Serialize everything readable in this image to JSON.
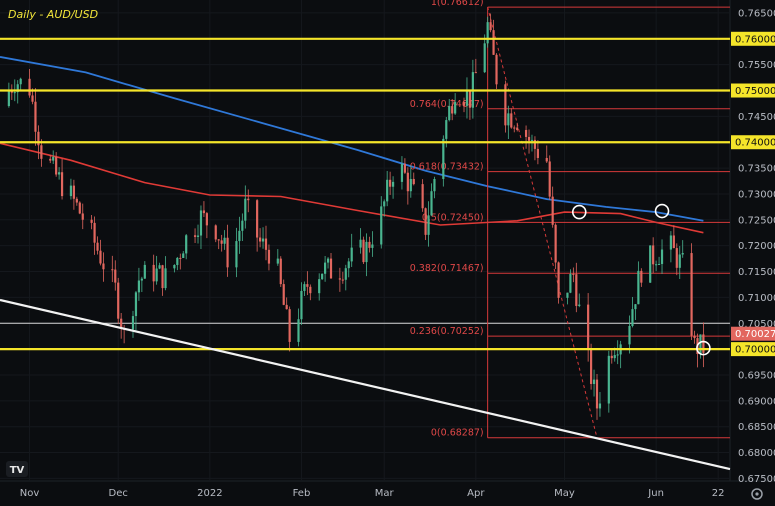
{
  "chart_data": {
    "type": "candlestick",
    "title": "Daily - AUD/USD",
    "y_range": [
      0.6745,
      0.7675
    ],
    "y_tick_labels": [
      "0.76500",
      "0.76000",
      "0.75500",
      "0.75000",
      "0.74500",
      "0.74000",
      "0.73500",
      "0.73000",
      "0.72500",
      "0.72000",
      "0.71500",
      "0.71000",
      "0.70500",
      "0.70000",
      "0.69500",
      "0.69000",
      "0.68500",
      "0.68000",
      "0.67500"
    ],
    "x_tick_labels": [
      {
        "label": "Nov",
        "date": "2021-11-01"
      },
      {
        "label": "Dec",
        "date": "2021-12-01"
      },
      {
        "label": "2022",
        "date": "2022-01-01"
      },
      {
        "label": "Feb",
        "date": "2022-02-01"
      },
      {
        "label": "Mar",
        "date": "2022-03-01"
      },
      {
        "label": "Apr",
        "date": "2022-04-01"
      },
      {
        "label": "May",
        "date": "2022-05-01"
      },
      {
        "label": "Jun",
        "date": "2022-06-01"
      },
      {
        "label": "22",
        "date": "2022-06-22"
      }
    ],
    "x_range": [
      "2021-10-22",
      "2022-06-26"
    ],
    "current_price": {
      "label": "0.70027",
      "value": 0.70027
    },
    "horizontal_levels": [
      {
        "value": 0.76,
        "label": "0.76000",
        "color": "#f5e52a"
      },
      {
        "value": 0.75,
        "label": "0.75000",
        "color": "#f5e52a"
      },
      {
        "value": 0.74,
        "label": "0.74000",
        "color": "#f5e52a"
      },
      {
        "value": 0.7,
        "label": "0.70000",
        "color": "#f5e52a"
      },
      {
        "value": 0.705,
        "label": "",
        "color": "#d8d8d8"
      }
    ],
    "fibonacci": [
      {
        "label": "1(0.76612)",
        "value": 0.76612
      },
      {
        "label": "0.764(0.74647)",
        "value": 0.74647
      },
      {
        "label": "0.618(0.73432)",
        "value": 0.73432
      },
      {
        "label": "0.5(0.72450)",
        "value": 0.7245
      },
      {
        "label": "0.382(0.71467)",
        "value": 0.71467
      },
      {
        "label": "0.236(0.70252)",
        "value": 0.70252
      },
      {
        "label": "0(0.68287)",
        "value": 0.68287
      }
    ],
    "fib_start_date": "2022-04-05",
    "fib_end_date": "2022-06-24",
    "fib_swing": [
      {
        "date": "2022-04-05",
        "value": 0.76612
      },
      {
        "date": "2022-05-12",
        "value": 0.68287
      }
    ],
    "trendline": [
      {
        "date": "2021-10-22",
        "value": 0.7095
      },
      {
        "date": "2022-06-26",
        "value": 0.6768
      }
    ],
    "ma_blue": [
      {
        "date": "2021-10-22",
        "value": 0.7565
      },
      {
        "date": "2021-11-20",
        "value": 0.7535
      },
      {
        "date": "2021-12-20",
        "value": 0.7485
      },
      {
        "date": "2022-01-20",
        "value": 0.7435
      },
      {
        "date": "2022-02-20",
        "value": 0.7385
      },
      {
        "date": "2022-03-15",
        "value": 0.7345
      },
      {
        "date": "2022-04-05",
        "value": 0.7315
      },
      {
        "date": "2022-04-25",
        "value": 0.729
      },
      {
        "date": "2022-05-15",
        "value": 0.7275
      },
      {
        "date": "2022-06-01",
        "value": 0.7265
      },
      {
        "date": "2022-06-17",
        "value": 0.7248
      }
    ],
    "ma_red": [
      {
        "date": "2021-10-22",
        "value": 0.7398
      },
      {
        "date": "2021-11-15",
        "value": 0.7365
      },
      {
        "date": "2021-12-10",
        "value": 0.7322
      },
      {
        "date": "2022-01-01",
        "value": 0.7298
      },
      {
        "date": "2022-01-25",
        "value": 0.7295
      },
      {
        "date": "2022-02-20",
        "value": 0.7268
      },
      {
        "date": "2022-03-20",
        "value": 0.724
      },
      {
        "date": "2022-04-15",
        "value": 0.7248
      },
      {
        "date": "2022-05-01",
        "value": 0.7265
      },
      {
        "date": "2022-05-20",
        "value": 0.7262
      },
      {
        "date": "2022-06-01",
        "value": 0.7245
      },
      {
        "date": "2022-06-17",
        "value": 0.7225
      }
    ],
    "circle_markers": [
      {
        "date": "2022-05-06",
        "value": 0.7265
      },
      {
        "date": "2022-06-03",
        "value": 0.7267
      },
      {
        "date": "2022-06-17",
        "value": 0.7002
      }
    ],
    "closes": [
      {
        "date": "2021-10-22",
        "value": 0.747
      },
      {
        "date": "2021-10-27",
        "value": 0.752
      },
      {
        "date": "2021-11-01",
        "value": 0.7505
      },
      {
        "date": "2021-11-05",
        "value": 0.7385
      },
      {
        "date": "2021-11-10",
        "value": 0.7335
      },
      {
        "date": "2021-11-15",
        "value": 0.7295
      },
      {
        "date": "2021-11-20",
        "value": 0.7245
      },
      {
        "date": "2021-11-25",
        "value": 0.718
      },
      {
        "date": "2021-11-30",
        "value": 0.7115
      },
      {
        "date": "2021-12-03",
        "value": 0.7025
      },
      {
        "date": "2021-12-08",
        "value": 0.7135
      },
      {
        "date": "2021-12-13",
        "value": 0.715
      },
      {
        "date": "2021-12-18",
        "value": 0.7135
      },
      {
        "date": "2021-12-23",
        "value": 0.7205
      },
      {
        "date": "2021-12-29",
        "value": 0.7255
      },
      {
        "date": "2022-01-03",
        "value": 0.7235
      },
      {
        "date": "2022-01-08",
        "value": 0.7165
      },
      {
        "date": "2022-01-13",
        "value": 0.7275
      },
      {
        "date": "2022-01-18",
        "value": 0.7205
      },
      {
        "date": "2022-01-23",
        "value": 0.718
      },
      {
        "date": "2022-01-28",
        "value": 0.702
      },
      {
        "date": "2022-02-03",
        "value": 0.7125
      },
      {
        "date": "2022-02-08",
        "value": 0.7155
      },
      {
        "date": "2022-02-13",
        "value": 0.715
      },
      {
        "date": "2022-02-18",
        "value": 0.7175
      },
      {
        "date": "2022-02-23",
        "value": 0.7195
      },
      {
        "date": "2022-02-28",
        "value": 0.726
      },
      {
        "date": "2022-03-05",
        "value": 0.7365
      },
      {
        "date": "2022-03-10",
        "value": 0.7315
      },
      {
        "date": "2022-03-15",
        "value": 0.7235
      },
      {
        "date": "2022-03-20",
        "value": 0.7395
      },
      {
        "date": "2022-03-25",
        "value": 0.7505
      },
      {
        "date": "2022-03-30",
        "value": 0.7485
      },
      {
        "date": "2022-04-05",
        "value": 0.7625
      },
      {
        "date": "2022-04-10",
        "value": 0.746
      },
      {
        "date": "2022-04-15",
        "value": 0.7445
      },
      {
        "date": "2022-04-20",
        "value": 0.7395
      },
      {
        "date": "2022-04-25",
        "value": 0.7365
      },
      {
        "date": "2022-04-29",
        "value": 0.7085
      },
      {
        "date": "2022-05-04",
        "value": 0.7145
      },
      {
        "date": "2022-05-08",
        "value": 0.7005
      },
      {
        "date": "2022-05-12",
        "value": 0.689
      },
      {
        "date": "2022-05-17",
        "value": 0.7005
      },
      {
        "date": "2022-05-22",
        "value": 0.7035
      },
      {
        "date": "2022-05-27",
        "value": 0.7155
      },
      {
        "date": "2022-06-01",
        "value": 0.7185
      },
      {
        "date": "2022-06-06",
        "value": 0.7195
      },
      {
        "date": "2022-06-10",
        "value": 0.716
      },
      {
        "date": "2022-06-14",
        "value": 0.7005
      },
      {
        "date": "2022-06-17",
        "value": 0.7003
      }
    ],
    "colors": {
      "background": "#0b0d10",
      "bull": "#4ab590",
      "bear": "#e2675f",
      "ma_blue": "#2f78d8",
      "ma_red": "#e03a36",
      "fib": "#d63a3a",
      "level_yellow": "#f5e52a",
      "trendline": "#f2f2f2"
    }
  }
}
